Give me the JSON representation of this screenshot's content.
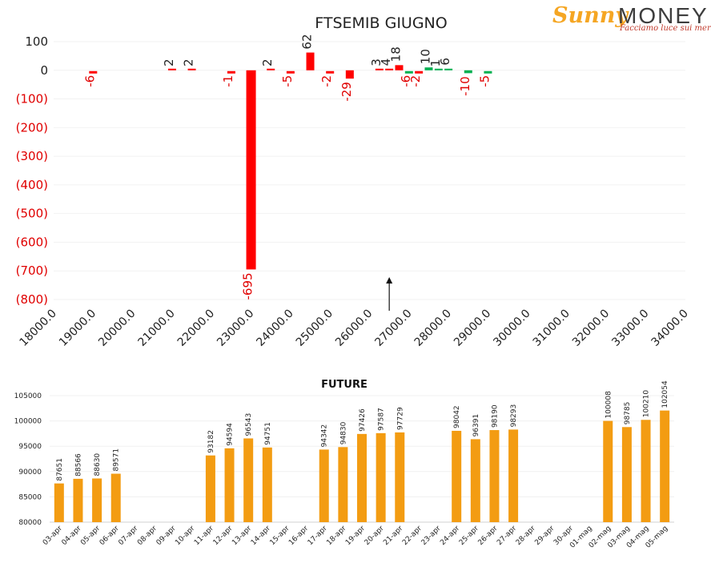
{
  "logo": {
    "brand_left": "Sunny",
    "brand_right": "MONEY",
    "tagline": "Facciamo luce sui mercati"
  },
  "chart_data": [
    {
      "type": "bar",
      "title": "FTSEMIB GIUGNO",
      "xlabel": "",
      "ylabel": "",
      "x_ticks": [
        "18000.0",
        "19000.0",
        "20000.0",
        "21000.0",
        "22000.0",
        "23000.0",
        "24000.0",
        "25000.0",
        "26000.0",
        "27000.0",
        "28000.0",
        "29000.0",
        "30000.0",
        "31000.0",
        "32000.0",
        "33000.0",
        "34000.0"
      ],
      "xlim": [
        18000,
        34000
      ],
      "y_ticks": [
        "100",
        "0",
        "(100)",
        "(200)",
        "(300)",
        "(400)",
        "(500)",
        "(600)",
        "(700)",
        "(800)"
      ],
      "ylim": [
        -800,
        100
      ],
      "annotation": "arrow at 26500",
      "arrow_x": 26500,
      "bars": [
        {
          "x": 19000,
          "value": -6
        },
        {
          "x": 21000,
          "value": 2
        },
        {
          "x": 21500,
          "value": 2
        },
        {
          "x": 22500,
          "value": -1
        },
        {
          "x": 23000,
          "value": -695
        },
        {
          "x": 23500,
          "value": 2
        },
        {
          "x": 24000,
          "value": -5
        },
        {
          "x": 24500,
          "value": 62
        },
        {
          "x": 25000,
          "value": -2
        },
        {
          "x": 25500,
          "value": -29
        },
        {
          "x": 26250,
          "value": 3
        },
        {
          "x": 26500,
          "value": 4
        },
        {
          "x": 26750,
          "value": 18
        },
        {
          "x": 27000,
          "value": -6
        },
        {
          "x": 27250,
          "value": -2
        },
        {
          "x": 27500,
          "value": 10
        },
        {
          "x": 27750,
          "value": 1
        },
        {
          "x": 28000,
          "value": 6
        },
        {
          "x": 28500,
          "value": -10
        },
        {
          "x": 29000,
          "value": -5
        }
      ],
      "colors": {
        "negative": "#ff0000",
        "positive_put_side": "#ff0000",
        "positive_call_side": "#00b050"
      }
    },
    {
      "type": "bar",
      "title": "FUTURE",
      "ylim": [
        80000,
        105000
      ],
      "y_ticks": [
        "105000",
        "100000",
        "95000",
        "90000",
        "85000",
        "80000"
      ],
      "categories": [
        "03-apr",
        "04-apr",
        "05-apr",
        "06-apr",
        "07-apr",
        "08-apr",
        "09-apr",
        "10-apr",
        "11-apr",
        "12-apr",
        "13-apr",
        "14-apr",
        "15-apr",
        "16-apr",
        "17-apr",
        "18-apr",
        "19-apr",
        "20-apr",
        "21-apr",
        "22-apr",
        "23-apr",
        "24-apr",
        "25-apr",
        "26-apr",
        "27-apr",
        "28-apr",
        "29-apr",
        "30-apr",
        "01-mag",
        "02-mag",
        "03-mag",
        "04-mag",
        "05-mag"
      ],
      "values": [
        87651,
        88566,
        88630,
        89571,
        null,
        null,
        null,
        null,
        93182,
        94594,
        96543,
        94751,
        null,
        null,
        94342,
        94830,
        97426,
        97587,
        97729,
        null,
        null,
        98042,
        96391,
        98190,
        98293,
        null,
        null,
        null,
        null,
        100008,
        98785,
        100210,
        102054
      ],
      "color": "#f39c12"
    }
  ]
}
